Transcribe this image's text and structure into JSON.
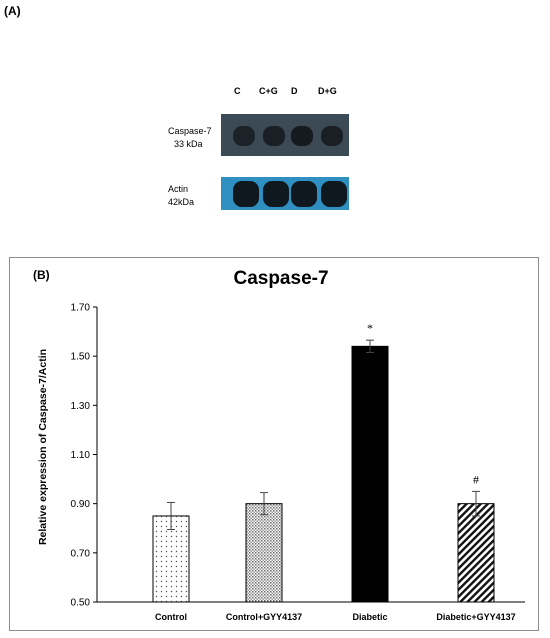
{
  "panel_a": {
    "label": "(A)",
    "lanes": [
      "C",
      "C+G",
      "D",
      "D+G"
    ],
    "rows": [
      {
        "name": "Caspase-7",
        "size": "33 kDa",
        "band_intensity": [
          0.7,
          0.75,
          0.85,
          0.75
        ]
      },
      {
        "name": "Actin",
        "size": "42kDa",
        "band_intensity": [
          0.95,
          0.95,
          0.95,
          0.95
        ]
      }
    ],
    "colors": {
      "caspase_bg": "#3c4a55",
      "actin_bg": "#2f8fc0",
      "band": "#0d1215"
    }
  },
  "chart_data": {
    "type": "bar",
    "panel_label": "(B)",
    "title": "Caspase-7",
    "ylabel": "Relative expression of Caspase-7/Actin",
    "xlabel": "",
    "categories": [
      "Control",
      "Control+GYY4137",
      "Diabetic",
      "Diabetic+GYY4137"
    ],
    "values": [
      0.85,
      0.9,
      1.54,
      0.9
    ],
    "errors": [
      0.055,
      0.045,
      0.025,
      0.05
    ],
    "annotations": [
      "",
      "",
      "*",
      "#"
    ],
    "ylim": [
      0.5,
      1.7
    ],
    "yticks": [
      "0.50",
      "0.70",
      "0.90",
      "1.10",
      "1.30",
      "1.50",
      "1.70"
    ],
    "patterns": [
      "dots",
      "dense-dots",
      "solid-black",
      "diagonal-stripes"
    ],
    "grid": false,
    "legend": "none"
  }
}
